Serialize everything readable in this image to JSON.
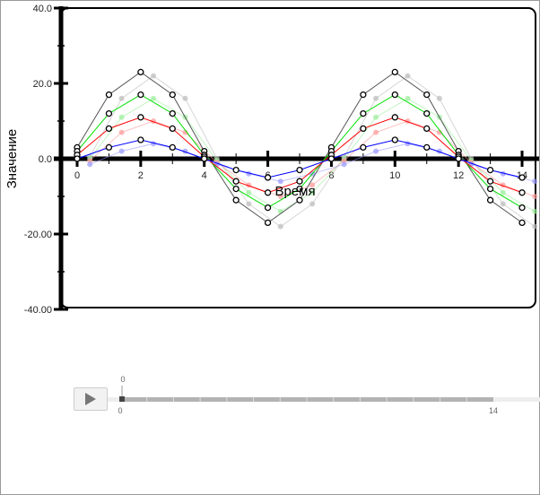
{
  "chart_data": {
    "type": "line",
    "xlabel": "Время",
    "ylabel": "Значение",
    "xlim": [
      0,
      14
    ],
    "ylim": [
      -40,
      40
    ],
    "x_ticks": [
      "0",
      "2",
      "4",
      "6",
      "8",
      "10",
      "12",
      "14"
    ],
    "y_ticks": [
      "40.0",
      "20.0",
      "0.0",
      "-20.00",
      "-40.00"
    ],
    "x": [
      0,
      1,
      2,
      3,
      4,
      5,
      6,
      7,
      8,
      9,
      10,
      11,
      12,
      13,
      14
    ],
    "series": [
      {
        "color": "#555555",
        "values": [
          3,
          17,
          23,
          17,
          2,
          -11,
          -17,
          -11,
          3,
          17,
          23,
          17,
          2,
          -11,
          -17
        ]
      },
      {
        "color": "#00e000",
        "values": [
          2,
          12,
          17,
          12,
          1,
          -8,
          -13,
          -8,
          2,
          12,
          17,
          12,
          1,
          -8,
          -13
        ]
      },
      {
        "color": "#ff0000",
        "values": [
          1,
          8,
          11,
          8,
          0.5,
          -6,
          -9,
          -6,
          1,
          8,
          11,
          8,
          0.5,
          -6,
          -9
        ]
      },
      {
        "color": "#0000ff",
        "values": [
          0,
          3,
          5,
          3,
          0,
          -3,
          -5,
          -3,
          0,
          3,
          5,
          3,
          0,
          -3,
          -5
        ]
      }
    ],
    "ghost_series": [
      {
        "color": "#bbbbbb",
        "values": [
          0.5,
          16,
          22,
          16,
          0,
          -12,
          -18,
          -12,
          0.5,
          16,
          22,
          16,
          0,
          -12,
          -18
        ]
      },
      {
        "color": "#99ee99",
        "values": [
          0,
          11,
          16,
          11,
          -0.5,
          -9,
          -14,
          -9,
          0,
          11,
          16,
          11,
          -0.5,
          -9,
          -14
        ]
      },
      {
        "color": "#ff9999",
        "values": [
          -0.5,
          7,
          10,
          7,
          -1,
          -7,
          -10,
          -7,
          -0.5,
          7,
          10,
          7,
          -1,
          -7,
          -10
        ]
      },
      {
        "color": "#9999ff",
        "values": [
          -1.5,
          2,
          4,
          2,
          -1.5,
          -4,
          -6,
          -4,
          -1.5,
          2,
          4,
          2,
          -1.5,
          -4,
          -6
        ]
      }
    ]
  },
  "player": {
    "current_label": "0",
    "min_label": "0",
    "max_label": "14",
    "position": 0
  }
}
